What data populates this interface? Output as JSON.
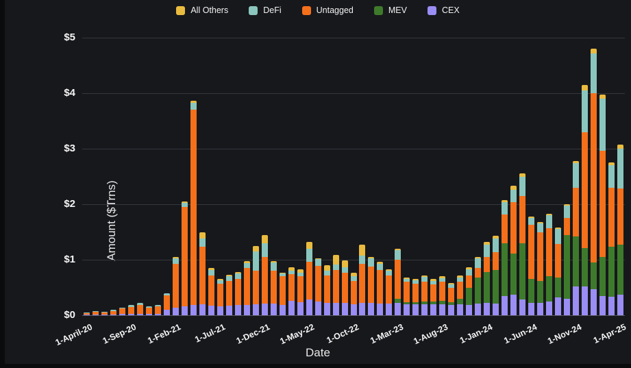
{
  "chart_data": {
    "type": "bar",
    "stacked": true,
    "title": "",
    "xlabel": "Date",
    "ylabel": "Amount ($Trns)",
    "ylim": [
      0,
      5
    ],
    "ytick_labels": [
      "$0",
      "$1",
      "$2",
      "$3",
      "$4",
      "$5"
    ],
    "ytick_values": [
      0,
      1,
      2,
      3,
      4,
      5
    ],
    "grid": true,
    "legend_position": "top-center",
    "background_color": "#17181c",
    "categories": [
      "Apr-20",
      "May-20",
      "Jun-20",
      "Jul-20",
      "Aug-20",
      "Sep-20",
      "Oct-20",
      "Nov-20",
      "Dec-20",
      "Jan-21",
      "Feb-21",
      "Mar-21",
      "Apr-21",
      "May-21",
      "Jun-21",
      "Jul-21",
      "Aug-21",
      "Sep-21",
      "Oct-21",
      "Nov-21",
      "Dec-21",
      "Jan-22",
      "Feb-22",
      "Mar-22",
      "Apr-22",
      "May-22",
      "Jun-22",
      "Jul-22",
      "Aug-22",
      "Sep-22",
      "Oct-22",
      "Nov-22",
      "Dec-22",
      "Jan-23",
      "Feb-23",
      "Mar-23",
      "Apr-23",
      "May-23",
      "Jun-23",
      "Jul-23",
      "Aug-23",
      "Sep-23",
      "Oct-23",
      "Nov-23",
      "Dec-23",
      "Jan-24",
      "Feb-24",
      "Mar-24",
      "Apr-24",
      "May-24",
      "Jun-24",
      "Jul-24",
      "Aug-24",
      "Sep-24",
      "Oct-24",
      "Nov-24",
      "Dec-24",
      "Jan-25",
      "Feb-25",
      "Mar-25",
      "Apr-25"
    ],
    "xtick_labels": [
      "1-April-20",
      "1-Sep-20",
      "1-Feb-21",
      "1-Jul-21",
      "1-Dec-21",
      "1-May-22",
      "1-Oct-22",
      "1-Mar-23",
      "1-Aug-23",
      "1-Jan-24",
      "1-Jun-24",
      "1-Nov-24",
      "1-Apr-25"
    ],
    "xtick_indices": [
      0,
      5,
      10,
      15,
      20,
      25,
      30,
      35,
      40,
      45,
      50,
      55,
      60
    ],
    "stack_order": [
      "CEX",
      "MEV",
      "Untagged",
      "DeFi",
      "All Others"
    ],
    "series": [
      {
        "name": "All Others",
        "color": "#e9bb3f",
        "values": [
          0,
          0,
          0,
          0,
          0,
          0,
          0,
          0,
          0,
          0,
          0.02,
          0.02,
          0.04,
          0.12,
          0.03,
          0.02,
          0.03,
          0.03,
          0.03,
          0.1,
          0.14,
          0.02,
          0.02,
          0.06,
          0.07,
          0.12,
          0.02,
          0.1,
          0.17,
          0.13,
          0.07,
          0.2,
          0.03,
          0.03,
          0.03,
          0.03,
          0.02,
          0.02,
          0.03,
          0.03,
          0.03,
          0.02,
          0.04,
          0.03,
          0.03,
          0.05,
          0.05,
          0.03,
          0.07,
          0.06,
          0.03,
          0.03,
          0.03,
          0.03,
          0.03,
          0.04,
          0.1,
          0.08,
          0.07,
          0.05,
          0.07
        ]
      },
      {
        "name": "DeFi",
        "color": "#8ac6bd",
        "values": [
          0.01,
          0.01,
          0.01,
          0.02,
          0.02,
          0.03,
          0.04,
          0.03,
          0.03,
          0.04,
          0.1,
          0.08,
          0.13,
          0.15,
          0.1,
          0.06,
          0.08,
          0.09,
          0.09,
          0.35,
          0.25,
          0.15,
          0.05,
          0.06,
          0.05,
          0.24,
          0.12,
          0.08,
          0.1,
          0.1,
          0.08,
          0.14,
          0.14,
          0.11,
          0.08,
          0.17,
          0.06,
          0.06,
          0.09,
          0.06,
          0.07,
          0.06,
          0.08,
          0.11,
          0.17,
          0.22,
          0.25,
          0.23,
          0.22,
          0.35,
          0.12,
          0.15,
          0.23,
          0.27,
          0.22,
          0.44,
          0.75,
          0.72,
          0.94,
          0.4,
          0.72
        ]
      },
      {
        "name": "Untagged",
        "color": "#f4701b",
        "values": [
          0.03,
          0.05,
          0.04,
          0.07,
          0.1,
          0.13,
          0.16,
          0.11,
          0.13,
          0.26,
          0.8,
          1.79,
          3.51,
          1.03,
          0.55,
          0.41,
          0.45,
          0.47,
          0.66,
          0.6,
          0.84,
          0.59,
          0.51,
          0.48,
          0.48,
          0.68,
          0.64,
          0.5,
          0.6,
          0.54,
          0.42,
          0.71,
          0.66,
          0.61,
          0.51,
          0.7,
          0.37,
          0.33,
          0.35,
          0.31,
          0.34,
          0.26,
          0.3,
          0.23,
          0.17,
          0.27,
          0.31,
          0.51,
          0.93,
          0.85,
          0.98,
          0.88,
          0.87,
          0.6,
          0.31,
          0.88,
          2.09,
          3.05,
          1.91,
          1.07,
          1.01
        ]
      },
      {
        "name": "MEV",
        "color": "#3e7a2b",
        "values": [
          0,
          0,
          0,
          0,
          0,
          0,
          0,
          0,
          0,
          0,
          0,
          0,
          0,
          0,
          0,
          0,
          0,
          0,
          0,
          0,
          0,
          0,
          0,
          0,
          0,
          0,
          0,
          0,
          0,
          0,
          0,
          0,
          0,
          0,
          0,
          0.08,
          0.03,
          0.04,
          0.05,
          0.05,
          0.06,
          0.06,
          0.1,
          0.3,
          0.47,
          0.56,
          0.61,
          0.95,
          0.74,
          1.02,
          0.43,
          0.4,
          0.45,
          0.36,
          1.14,
          0.9,
          0.69,
          0.48,
          0.7,
          0.9,
          0.9
        ]
      },
      {
        "name": "CEX",
        "color": "#9a8df4",
        "values": [
          0.01,
          0.01,
          0.01,
          0.01,
          0.02,
          0.02,
          0.02,
          0.02,
          0.03,
          0.1,
          0.13,
          0.16,
          0.19,
          0.2,
          0.17,
          0.16,
          0.17,
          0.19,
          0.19,
          0.2,
          0.21,
          0.21,
          0.19,
          0.26,
          0.23,
          0.28,
          0.25,
          0.22,
          0.22,
          0.22,
          0.2,
          0.22,
          0.22,
          0.21,
          0.21,
          0.22,
          0.2,
          0.2,
          0.2,
          0.2,
          0.2,
          0.18,
          0.2,
          0.19,
          0.21,
          0.22,
          0.21,
          0.35,
          0.37,
          0.28,
          0.22,
          0.22,
          0.25,
          0.32,
          0.3,
          0.52,
          0.52,
          0.47,
          0.35,
          0.33,
          0.37
        ]
      }
    ]
  },
  "axes": {
    "x_title": "Date",
    "y_title": "Amount ($Trns)"
  },
  "colors": {
    "background": "#17181c",
    "gridline": "#34373c",
    "text": "#f5f5f5"
  }
}
